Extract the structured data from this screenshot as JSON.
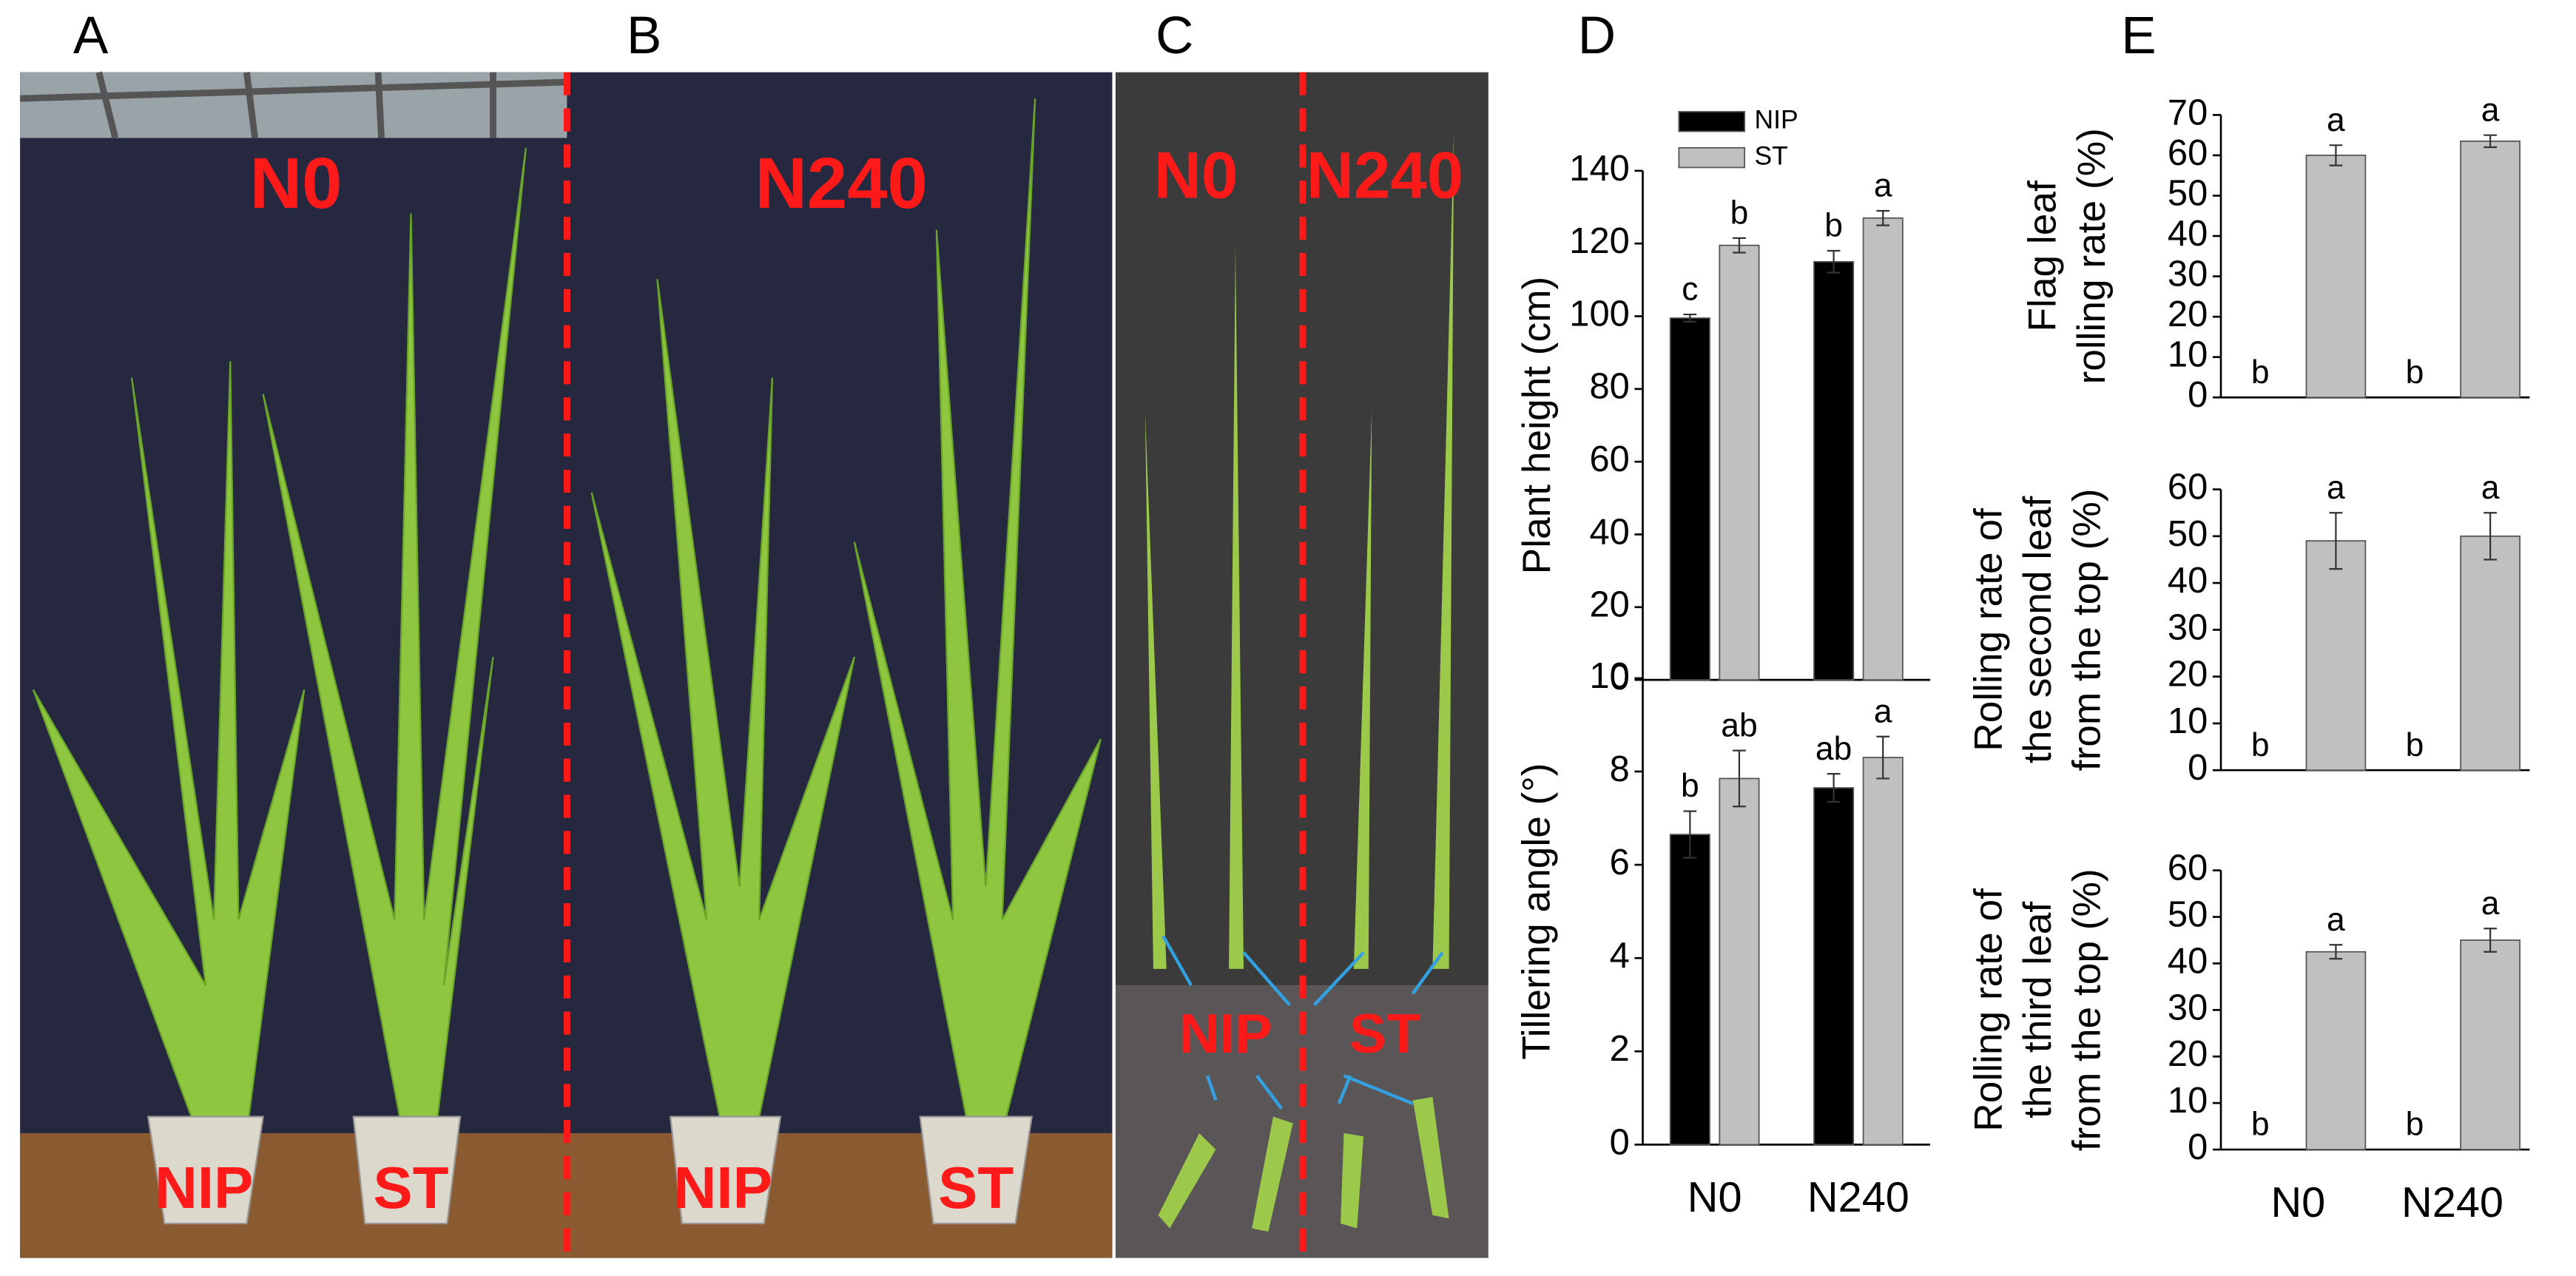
{
  "panel_letters": [
    "A",
    "B",
    "C",
    "D",
    "E"
  ],
  "photos": {
    "A": {
      "treatment": "N0",
      "varieties": [
        "NIP",
        "ST"
      ]
    },
    "B": {
      "treatment": "N240",
      "varieties": [
        "NIP",
        "ST"
      ]
    },
    "C": {
      "treatments": [
        "N0",
        "N240"
      ],
      "varieties": [
        "NIP",
        "ST"
      ]
    }
  },
  "chart_data": [
    {
      "type": "bar",
      "ylabel": [
        "Plant height (cm)"
      ],
      "ylim": [
        0,
        140
      ],
      "yticks": [
        0,
        20,
        40,
        60,
        80,
        100,
        120,
        140
      ],
      "legend": "top-left",
      "series": [
        {
          "name": "NIP",
          "color": "#000000",
          "values": [
            99.5,
            115
          ],
          "errors": [
            1,
            3
          ],
          "letters": [
            "c",
            "b"
          ]
        },
        {
          "name": "ST",
          "color": "#c0c0c0",
          "values": [
            119.5,
            127
          ],
          "errors": [
            2,
            2
          ],
          "letters": [
            "b",
            "a"
          ]
        }
      ]
    },
    {
      "type": "bar",
      "ylabel": [
        "Tillering angle (°)"
      ],
      "ylim": [
        0,
        10
      ],
      "yticks": [
        0,
        2,
        4,
        6,
        8,
        10
      ],
      "categories": [
        "N0",
        "N240"
      ],
      "series": [
        {
          "color": "#000000",
          "values": [
            6.65,
            7.65
          ],
          "errors": [
            0.5,
            0.3
          ],
          "letters": [
            "b",
            "ab"
          ]
        },
        {
          "color": "#c0c0c0",
          "values": [
            7.85,
            8.3
          ],
          "errors": [
            0.6,
            0.45
          ],
          "letters": [
            "ab",
            "a"
          ]
        }
      ]
    },
    {
      "type": "bar",
      "ylabel": [
        "Flag leaf",
        "rolling rate (%)"
      ],
      "ylim": [
        0,
        70
      ],
      "yticks": [
        0,
        10,
        20,
        30,
        40,
        50,
        60,
        70
      ],
      "series": [
        {
          "color": "#000000",
          "values": [
            0,
            0
          ],
          "letters": [
            "b",
            "b"
          ]
        },
        {
          "color": "#c0c0c0",
          "values": [
            60,
            63.5
          ],
          "errors": [
            2.5,
            1.5
          ],
          "letters": [
            "a",
            "a"
          ]
        }
      ]
    },
    {
      "type": "bar",
      "ylabel": [
        "Rolling rate of",
        "the second leaf",
        "from the top (%)"
      ],
      "ylim": [
        0,
        60
      ],
      "yticks": [
        0,
        10,
        20,
        30,
        40,
        50,
        60
      ],
      "series": [
        {
          "color": "#000000",
          "values": [
            0,
            0
          ],
          "letters": [
            "b",
            "b"
          ]
        },
        {
          "color": "#c0c0c0",
          "values": [
            49,
            50
          ],
          "errors": [
            6,
            5
          ],
          "letters": [
            "a",
            "a"
          ]
        }
      ]
    },
    {
      "type": "bar",
      "ylabel": [
        "Rolling rate of",
        "the third leaf",
        "from the top (%)"
      ],
      "ylim": [
        0,
        60
      ],
      "yticks": [
        0,
        10,
        20,
        30,
        40,
        50,
        60
      ],
      "categories": [
        "N0",
        "N240"
      ],
      "series": [
        {
          "color": "#000000",
          "values": [
            0,
            0
          ],
          "letters": [
            "b",
            "b"
          ]
        },
        {
          "color": "#c0c0c0",
          "values": [
            42.5,
            45
          ],
          "errors": [
            1.5,
            2.5
          ],
          "letters": [
            "a",
            "a"
          ]
        }
      ]
    }
  ]
}
